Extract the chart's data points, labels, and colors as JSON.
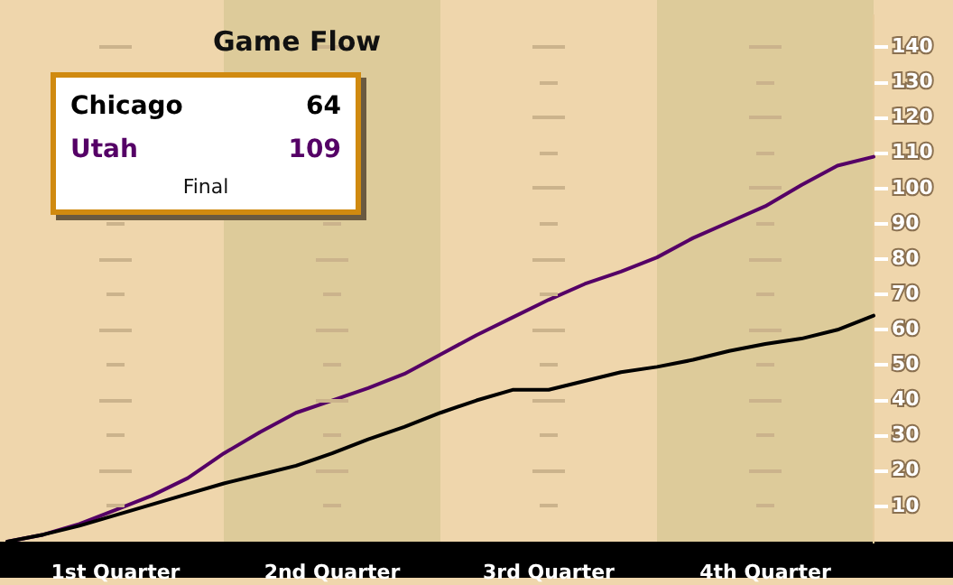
{
  "chart_data": {
    "type": "line",
    "title": "Game Flow",
    "annotations": [
      "64",
      "109",
      "Final"
    ],
    "legend": "top left",
    "marker": "none",
    "line_style": "solid",
    "categories": [
      null,
      null,
      null,
      "1st Quarter",
      null,
      null,
      null,
      null,
      null,
      "2nd Quarter",
      null,
      null,
      null,
      null,
      null,
      "3rd Quarter",
      null,
      null,
      null,
      null,
      null,
      "4th Quarter",
      null,
      null,
      null
    ],
    "ylim": [
      0,
      149
    ],
    "yticks": [
      10,
      20,
      30,
      40,
      50,
      60,
      70,
      80,
      90,
      100,
      110,
      120,
      130,
      140
    ],
    "series": [
      {
        "name": "Chicago",
        "color": "#000000",
        "values": [
          0,
          2,
          4.5,
          7.5,
          10.5,
          13.5,
          16.5,
          19,
          21.5,
          25,
          29,
          32.5,
          36.5,
          40,
          43,
          43,
          45.5,
          48,
          49.5,
          51.5,
          54,
          56,
          57.5,
          60,
          64
        ]
      },
      {
        "name": "Utah",
        "color": "#550066",
        "values": [
          0,
          2,
          5,
          9,
          13,
          18,
          25,
          31,
          36.5,
          40,
          43.5,
          47.5,
          53,
          58.5,
          63.5,
          68.5,
          73,
          76.5,
          80.5,
          86,
          90.5,
          95,
          101,
          106.5,
          109
        ]
      }
    ]
  }
}
